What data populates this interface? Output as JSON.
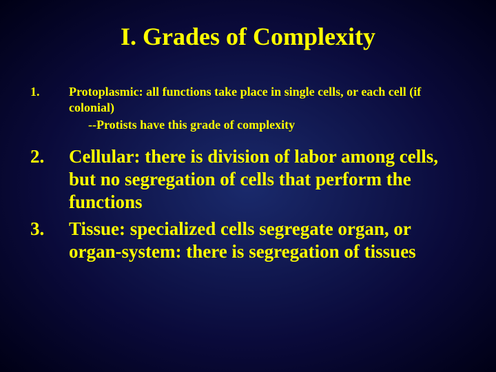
{
  "slide": {
    "title": "I. Grades of Complexity",
    "title_fontsize": 36,
    "title_color": "#ffff00",
    "background": {
      "type": "radial-gradient",
      "inner_color": "#1a2a6c",
      "mid_color": "#0a0a3a",
      "outer_color": "#000015"
    },
    "text_color": "#ffff00",
    "font_family": "Times New Roman",
    "items": [
      {
        "number": "1.",
        "text": "Protoplasmic:  all functions take place in single cells, or each cell (if colonial)",
        "sub": "--Protists have this grade of complexity",
        "fontsize": 18,
        "size_class": "small"
      },
      {
        "number": "2.",
        "text": "Cellular: there is division of labor among cells, but no segregation of cells that perform the functions",
        "fontsize": 27,
        "size_class": "large"
      },
      {
        "number": "3.",
        "text": "Tissue:  specialized cells segregate organ, or organ-system: there is segregation of tissues",
        "fontsize": 27,
        "size_class": "large"
      }
    ]
  }
}
